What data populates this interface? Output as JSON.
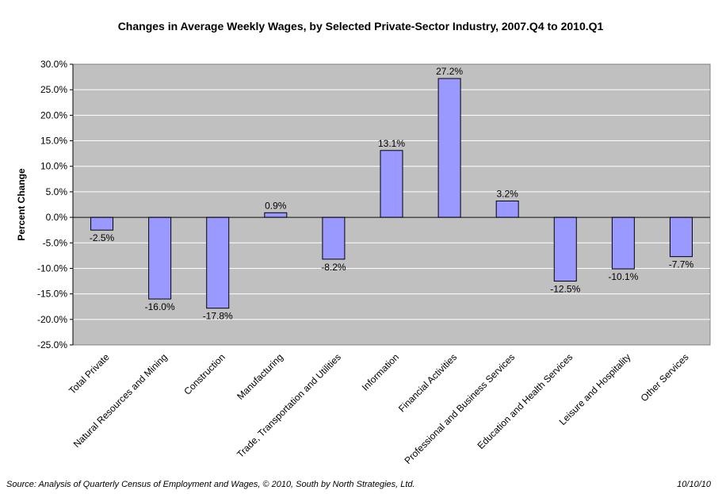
{
  "chart_data": {
    "type": "bar",
    "title": "Changes in Average Weekly Wages, by Selected Private-Sector Industry, 2007.Q4 to 2010.Q1",
    "ylabel": "Percent Change",
    "xlabel": "",
    "ylim": [
      -25,
      30
    ],
    "ytick_step": 5,
    "ytick_labels": [
      "30.0%",
      "25.0%",
      "20.0%",
      "15.0%",
      "10.0%",
      "5.0%",
      "0.0%",
      "-5.0%",
      "-10.0%",
      "-15.0%",
      "-20.0%",
      "-25.0%"
    ],
    "grid": true,
    "legend": "none",
    "categories": [
      "Total Private",
      "Natural Resources and Mining",
      "Construction",
      "Manufacturing",
      "Trade, Transportation and Utilities",
      "Information",
      "Financial Activities",
      "Professional and Business Services",
      "Education and Health Services",
      "Leisure and Hospitality",
      "Other Services"
    ],
    "values": [
      -2.5,
      -16.0,
      -17.8,
      0.9,
      -8.2,
      13.1,
      27.2,
      3.2,
      -12.5,
      -10.1,
      -7.7
    ],
    "data_labels": [
      "-2.5%",
      "-16.0%",
      "-17.8%",
      "0.9%",
      "-8.2%",
      "13.1%",
      "27.2%",
      "3.2%",
      "-12.5%",
      "-10.1%",
      "-7.7%"
    ],
    "colors": {
      "bar_fill": "#9999FF",
      "bar_stroke": "#000000",
      "plot_bg": "#C0C0C0",
      "gridline": "#FFFFFF"
    }
  },
  "footer": {
    "source": "Source: Analysis of Quarterly Census of Employment and Wages, © 2010, South by North Strategies, Ltd.",
    "date": "10/10/10"
  }
}
